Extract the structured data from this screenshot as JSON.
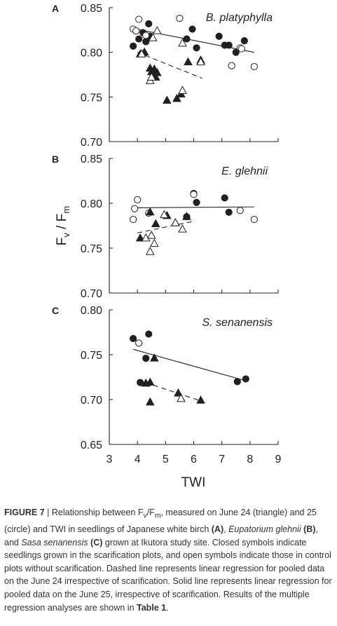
{
  "chart_data": [
    {
      "panel_letter": "A",
      "type": "scatter",
      "species_label": "B. platyphylla",
      "ylim": [
        0.7,
        0.85
      ],
      "yticks": [
        "0.85",
        "0.80",
        "0.75",
        "0.70"
      ],
      "ytick_values": [
        0.85,
        0.8,
        0.75,
        0.7
      ],
      "xlim": [
        3,
        9
      ],
      "series": [
        {
          "name": "June 25, scarification",
          "marker": "circle-filled",
          "points": [
            [
              3.85,
              0.807
            ],
            [
              4.05,
              0.815
            ],
            [
              4.2,
              0.822
            ],
            [
              4.3,
              0.812
            ],
            [
              4.4,
              0.832
            ],
            [
              4.45,
              0.818
            ],
            [
              5.75,
              0.815
            ],
            [
              5.95,
              0.826
            ],
            [
              6.1,
              0.805
            ],
            [
              6.9,
              0.818
            ],
            [
              7.1,
              0.808
            ],
            [
              7.25,
              0.808
            ],
            [
              7.5,
              0.8
            ],
            [
              7.8,
              0.813
            ]
          ]
        },
        {
          "name": "June 25, control",
          "marker": "circle-open",
          "points": [
            [
              3.85,
              0.826
            ],
            [
              3.95,
              0.824
            ],
            [
              4.05,
              0.837
            ],
            [
              4.3,
              0.819
            ],
            [
              5.5,
              0.838
            ],
            [
              7.35,
              0.785
            ],
            [
              7.65,
              0.805
            ],
            [
              7.7,
              0.804
            ],
            [
              8.15,
              0.784
            ]
          ]
        },
        {
          "name": "June 24, scarification",
          "marker": "triangle-filled",
          "points": [
            [
              4.1,
              0.798
            ],
            [
              4.25,
              0.8
            ],
            [
              4.45,
              0.782
            ],
            [
              4.5,
              0.778
            ],
            [
              4.55,
              0.775
            ],
            [
              4.6,
              0.781
            ],
            [
              4.65,
              0.772
            ],
            [
              4.7,
              0.777
            ],
            [
              5.05,
              0.746
            ],
            [
              5.4,
              0.748
            ],
            [
              5.55,
              0.753
            ],
            [
              5.8,
              0.789
            ],
            [
              6.25,
              0.791
            ]
          ]
        },
        {
          "name": "June 24, control",
          "marker": "triangle-open",
          "points": [
            [
              4.15,
              0.798
            ],
            [
              4.45,
              0.768
            ],
            [
              4.5,
              0.772
            ],
            [
              4.55,
              0.816
            ],
            [
              4.7,
              0.824
            ],
            [
              5.6,
              0.757
            ],
            [
              5.6,
              0.81
            ],
            [
              6.25,
              0.789
            ]
          ]
        }
      ],
      "lines": [
        {
          "style": "solid",
          "x": [
            3.8,
            8.15
          ],
          "y": [
            0.827,
            0.8
          ]
        },
        {
          "style": "dashed",
          "x": [
            4.0,
            6.3
          ],
          "y": [
            0.8,
            0.771
          ]
        }
      ]
    },
    {
      "panel_letter": "B",
      "type": "scatter",
      "species_label": "E. glehnii",
      "ylim": [
        0.7,
        0.85
      ],
      "yticks": [
        "0.85",
        "0.80",
        "0.75",
        "0.70"
      ],
      "ytick_values": [
        0.85,
        0.8,
        0.75,
        0.7
      ],
      "xlim": [
        3,
        9
      ],
      "series": [
        {
          "name": "June 25, scarification",
          "marker": "circle-filled",
          "points": [
            [
              5.75,
              0.785
            ],
            [
              6.0,
              0.811
            ],
            [
              6.1,
              0.801
            ],
            [
              7.1,
              0.806
            ],
            [
              7.25,
              0.79
            ]
          ]
        },
        {
          "name": "June 25, control",
          "marker": "circle-open",
          "points": [
            [
              3.85,
              0.782
            ],
            [
              3.9,
              0.794
            ],
            [
              4.0,
              0.804
            ],
            [
              4.4,
              0.789
            ],
            [
              6.0,
              0.81
            ],
            [
              7.65,
              0.792
            ],
            [
              8.15,
              0.782
            ]
          ]
        },
        {
          "name": "June 24, scarification",
          "marker": "triangle-filled",
          "points": [
            [
              4.1,
              0.761
            ],
            [
              4.45,
              0.79
            ],
            [
              4.65,
              0.777
            ],
            [
              5.05,
              0.786
            ],
            [
              5.35,
              0.778
            ],
            [
              5.75,
              0.785
            ]
          ]
        },
        {
          "name": "June 24, control",
          "marker": "triangle-open",
          "points": [
            [
              4.3,
              0.761
            ],
            [
              4.45,
              0.746
            ],
            [
              4.5,
              0.764
            ],
            [
              4.6,
              0.755
            ],
            [
              4.95,
              0.787
            ],
            [
              5.35,
              0.778
            ],
            [
              5.6,
              0.771
            ]
          ]
        }
      ],
      "lines": [
        {
          "style": "solid",
          "x": [
            3.8,
            8.15
          ],
          "y": [
            0.795,
            0.796
          ]
        },
        {
          "style": "dashed",
          "x": [
            4.0,
            6.0
          ],
          "y": [
            0.767,
            0.78
          ]
        }
      ]
    },
    {
      "panel_letter": "C",
      "type": "scatter",
      "species_label": "S. senanensis",
      "ylim": [
        0.65,
        0.8
      ],
      "yticks": [
        "0.80",
        "0.75",
        "0.70",
        "0.65"
      ],
      "ytick_values": [
        0.8,
        0.75,
        0.7,
        0.65
      ],
      "xlim": [
        3,
        9
      ],
      "xticks": [
        "3",
        "4",
        "5",
        "6",
        "7",
        "8",
        "9"
      ],
      "xtick_values": [
        3,
        4,
        5,
        6,
        7,
        8,
        9
      ],
      "xlabel": "TWI",
      "series": [
        {
          "name": "June 25, scarification",
          "marker": "circle-filled",
          "points": [
            [
              3.85,
              0.768
            ],
            [
              4.1,
              0.719
            ],
            [
              4.3,
              0.746
            ],
            [
              4.4,
              0.773
            ],
            [
              7.55,
              0.72
            ],
            [
              7.85,
              0.723
            ]
          ]
        },
        {
          "name": "June 25, control",
          "marker": "circle-open",
          "points": [
            [
              4.05,
              0.763
            ]
          ]
        },
        {
          "name": "June 24, scarification",
          "marker": "triangle-filled",
          "points": [
            [
              4.3,
              0.718
            ],
            [
              4.45,
              0.719
            ],
            [
              4.45,
              0.697
            ],
            [
              4.6,
              0.746
            ],
            [
              5.45,
              0.707
            ],
            [
              6.25,
              0.699
            ]
          ]
        },
        {
          "name": "June 24, control",
          "marker": "triangle-open",
          "points": [
            [
              5.55,
              0.701
            ]
          ]
        }
      ],
      "lines": [
        {
          "style": "solid",
          "x": [
            3.85,
            7.85
          ],
          "y": [
            0.756,
            0.721
          ]
        },
        {
          "style": "dashed",
          "x": [
            4.0,
            6.2
          ],
          "y": [
            0.722,
            0.699
          ]
        }
      ]
    }
  ],
  "y_axis_label": {
    "main": "F",
    "sub1": "v",
    "mid": " / F",
    "sub2": "m"
  },
  "caption": {
    "label": "FIGURE 7",
    "sep": " | ",
    "t1": "Relationship between F",
    "t1_sub1": "v",
    "t1_mid": "/F",
    "t1_sub2": "m",
    "t2": ", measured on June 24 (triangle) and 25 (circle) and TWI in seedlings of Japanese white birch ",
    "ref_a": "(A)",
    "t3": ", ",
    "species_b": "Eupatorium glehnii",
    "t4": " ",
    "ref_b": "(B)",
    "t5": ", and ",
    "species_c": "Sasa senanensis",
    "t6": " ",
    "ref_c": "(C)",
    "t7": " grown at Ikutora study site. Closed symbols indicate seedlings grown in the scarification plots, and open symbols indicate those in control plots without scarification. Dashed line represents linear regression for pooled data on the June 24 irrespective of scarification. Solid line represents linear regression for pooled data on the June 25, irrespective of scarification. Results of the multiple regression analyses are shown in ",
    "table_ref": "Table 1",
    "t8": "."
  }
}
